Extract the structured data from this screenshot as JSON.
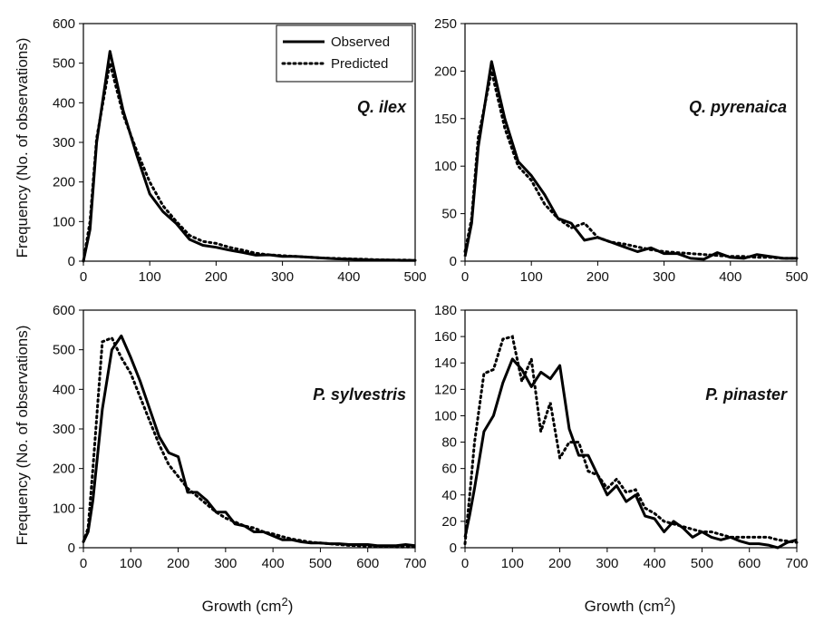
{
  "figure": {
    "ylabel": "Frequency (No. of observations)",
    "xlabel": "Growth (cm",
    "xlabel_sup": "2",
    "xlabel_close": ")"
  },
  "legend": {
    "observed": "Observed",
    "predicted": "Predicted"
  },
  "chart_data": [
    {
      "type": "line",
      "panel": "Q. ilex",
      "xlim": [
        0,
        500
      ],
      "ylim": [
        0,
        600
      ],
      "xticks": [
        0,
        100,
        200,
        300,
        400,
        500
      ],
      "yticks": [
        0,
        100,
        200,
        300,
        400,
        500,
        600
      ],
      "grid": false,
      "legend": "top-right",
      "series": [
        {
          "name": "Observed",
          "style": "solid",
          "x": [
            0,
            10,
            20,
            40,
            60,
            80,
            100,
            120,
            140,
            160,
            180,
            200,
            220,
            240,
            260,
            280,
            300,
            320,
            340,
            360,
            380,
            400,
            420,
            440,
            460,
            480,
            500
          ],
          "y": [
            0,
            80,
            300,
            530,
            380,
            270,
            170,
            125,
            95,
            55,
            40,
            35,
            28,
            22,
            15,
            16,
            12,
            12,
            10,
            8,
            6,
            5,
            4,
            3,
            3,
            2,
            2
          ]
        },
        {
          "name": "Predicted",
          "style": "dotted",
          "x": [
            0,
            10,
            20,
            40,
            60,
            80,
            100,
            120,
            140,
            160,
            180,
            200,
            220,
            240,
            260,
            280,
            300,
            320,
            340,
            360,
            380,
            400,
            420,
            440,
            460,
            480,
            500
          ],
          "y": [
            0,
            100,
            310,
            500,
            370,
            280,
            200,
            140,
            100,
            65,
            50,
            45,
            35,
            28,
            20,
            16,
            14,
            12,
            10,
            8,
            7,
            6,
            5,
            4,
            3,
            3,
            2
          ]
        }
      ]
    },
    {
      "type": "line",
      "panel": "Q. pyrenaica",
      "xlim": [
        0,
        500
      ],
      "ylim": [
        0,
        250
      ],
      "xticks": [
        0,
        100,
        200,
        300,
        400,
        500
      ],
      "yticks": [
        0,
        50,
        100,
        150,
        200,
        250
      ],
      "grid": false,
      "series": [
        {
          "name": "Observed",
          "style": "solid",
          "x": [
            0,
            10,
            20,
            40,
            60,
            80,
            100,
            120,
            140,
            160,
            180,
            200,
            220,
            240,
            260,
            280,
            300,
            320,
            340,
            360,
            380,
            400,
            420,
            440,
            460,
            480,
            500
          ],
          "y": [
            5,
            40,
            120,
            210,
            150,
            105,
            90,
            70,
            45,
            40,
            22,
            25,
            20,
            15,
            10,
            14,
            8,
            8,
            3,
            2,
            9,
            4,
            3,
            7,
            5,
            3,
            3
          ]
        },
        {
          "name": "Predicted",
          "style": "dotted",
          "x": [
            0,
            10,
            20,
            40,
            60,
            80,
            100,
            120,
            140,
            160,
            180,
            200,
            220,
            240,
            260,
            280,
            300,
            320,
            340,
            360,
            380,
            400,
            420,
            440,
            460,
            480,
            500
          ],
          "y": [
            10,
            45,
            130,
            200,
            140,
            100,
            85,
            60,
            45,
            35,
            40,
            25,
            20,
            18,
            15,
            12,
            10,
            9,
            8,
            7,
            6,
            5,
            5,
            4,
            4,
            3,
            3
          ]
        }
      ]
    },
    {
      "type": "line",
      "panel": "P. sylvestris",
      "xlim": [
        0,
        700
      ],
      "ylim": [
        0,
        600
      ],
      "xticks": [
        0,
        100,
        200,
        300,
        400,
        500,
        600,
        700
      ],
      "yticks": [
        0,
        100,
        200,
        300,
        400,
        500,
        600
      ],
      "grid": false,
      "series": [
        {
          "name": "Observed",
          "style": "solid",
          "x": [
            0,
            10,
            20,
            40,
            60,
            80,
            100,
            120,
            140,
            160,
            180,
            200,
            220,
            240,
            260,
            280,
            300,
            320,
            340,
            360,
            380,
            400,
            420,
            440,
            460,
            480,
            500,
            520,
            540,
            560,
            580,
            600,
            620,
            640,
            660,
            680,
            700
          ],
          "y": [
            15,
            40,
            120,
            350,
            500,
            535,
            480,
            420,
            350,
            280,
            240,
            230,
            140,
            140,
            120,
            90,
            90,
            60,
            55,
            40,
            40,
            30,
            20,
            20,
            15,
            12,
            12,
            10,
            10,
            8,
            8,
            8,
            5,
            5,
            5,
            8,
            5
          ]
        },
        {
          "name": "Predicted",
          "style": "dotted",
          "x": [
            0,
            10,
            20,
            40,
            60,
            80,
            100,
            120,
            140,
            160,
            180,
            200,
            220,
            240,
            260,
            280,
            300,
            320,
            340,
            360,
            380,
            400,
            420,
            440,
            460,
            480,
            500,
            520,
            540,
            560,
            580,
            600,
            620,
            640,
            660,
            680,
            700
          ],
          "y": [
            15,
            50,
            200,
            520,
            530,
            480,
            440,
            380,
            320,
            260,
            210,
            180,
            150,
            130,
            110,
            90,
            75,
            65,
            55,
            50,
            40,
            35,
            28,
            22,
            18,
            14,
            12,
            10,
            8,
            6,
            5,
            4,
            3,
            3,
            2,
            2,
            2
          ]
        }
      ]
    },
    {
      "type": "line",
      "panel": "P. pinaster",
      "xlim": [
        0,
        700
      ],
      "ylim": [
        0,
        180
      ],
      "xticks": [
        0,
        100,
        200,
        300,
        400,
        500,
        600,
        700
      ],
      "yticks": [
        0,
        20,
        40,
        60,
        80,
        100,
        120,
        140,
        160,
        180
      ],
      "grid": false,
      "series": [
        {
          "name": "Observed",
          "style": "solid",
          "x": [
            0,
            10,
            20,
            40,
            60,
            80,
            100,
            120,
            140,
            160,
            180,
            200,
            220,
            240,
            260,
            280,
            300,
            320,
            340,
            360,
            380,
            400,
            420,
            440,
            460,
            480,
            500,
            520,
            540,
            560,
            580,
            600,
            620,
            640,
            660,
            680,
            700
          ],
          "y": [
            8,
            25,
            45,
            88,
            100,
            125,
            143,
            135,
            122,
            133,
            128,
            138,
            90,
            70,
            70,
            55,
            40,
            47,
            35,
            40,
            24,
            22,
            12,
            20,
            15,
            8,
            12,
            8,
            6,
            8,
            5,
            3,
            3,
            2,
            0,
            4,
            6
          ]
        },
        {
          "name": "Predicted",
          "style": "dotted",
          "x": [
            0,
            10,
            20,
            40,
            60,
            80,
            100,
            120,
            140,
            160,
            180,
            200,
            220,
            240,
            260,
            280,
            300,
            320,
            340,
            360,
            380,
            400,
            420,
            440,
            460,
            480,
            500,
            520,
            540,
            560,
            580,
            600,
            620,
            640,
            660,
            680,
            700
          ],
          "y": [
            3,
            40,
            80,
            132,
            135,
            158,
            160,
            126,
            143,
            88,
            110,
            68,
            80,
            80,
            58,
            55,
            45,
            52,
            42,
            44,
            30,
            26,
            20,
            18,
            16,
            14,
            12,
            12,
            10,
            8,
            8,
            8,
            8,
            8,
            6,
            5,
            4
          ]
        }
      ]
    }
  ]
}
